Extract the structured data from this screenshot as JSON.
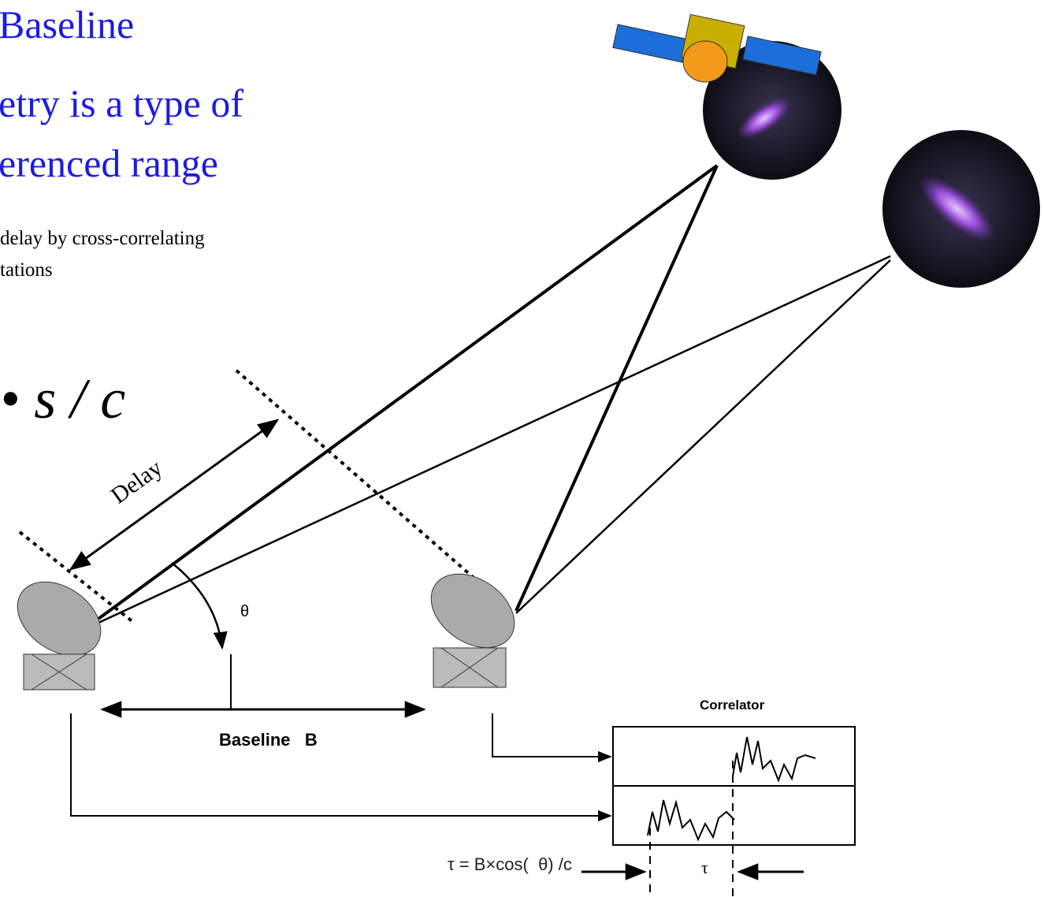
{
  "title": {
    "lines": [
      "Baseline",
      "etry is a type of",
      "erenced range"
    ]
  },
  "body": {
    "lines": [
      "delay by cross-correlating",
      "tations"
    ]
  },
  "equation": "• s / c",
  "diagram": {
    "delay_label": "Delay",
    "angle_label": "θ",
    "baseline_label": "Baseline   B",
    "correlator_label": "Correlator",
    "formula": "τ = B×cos(  θ) /c",
    "tau_label": "τ"
  }
}
